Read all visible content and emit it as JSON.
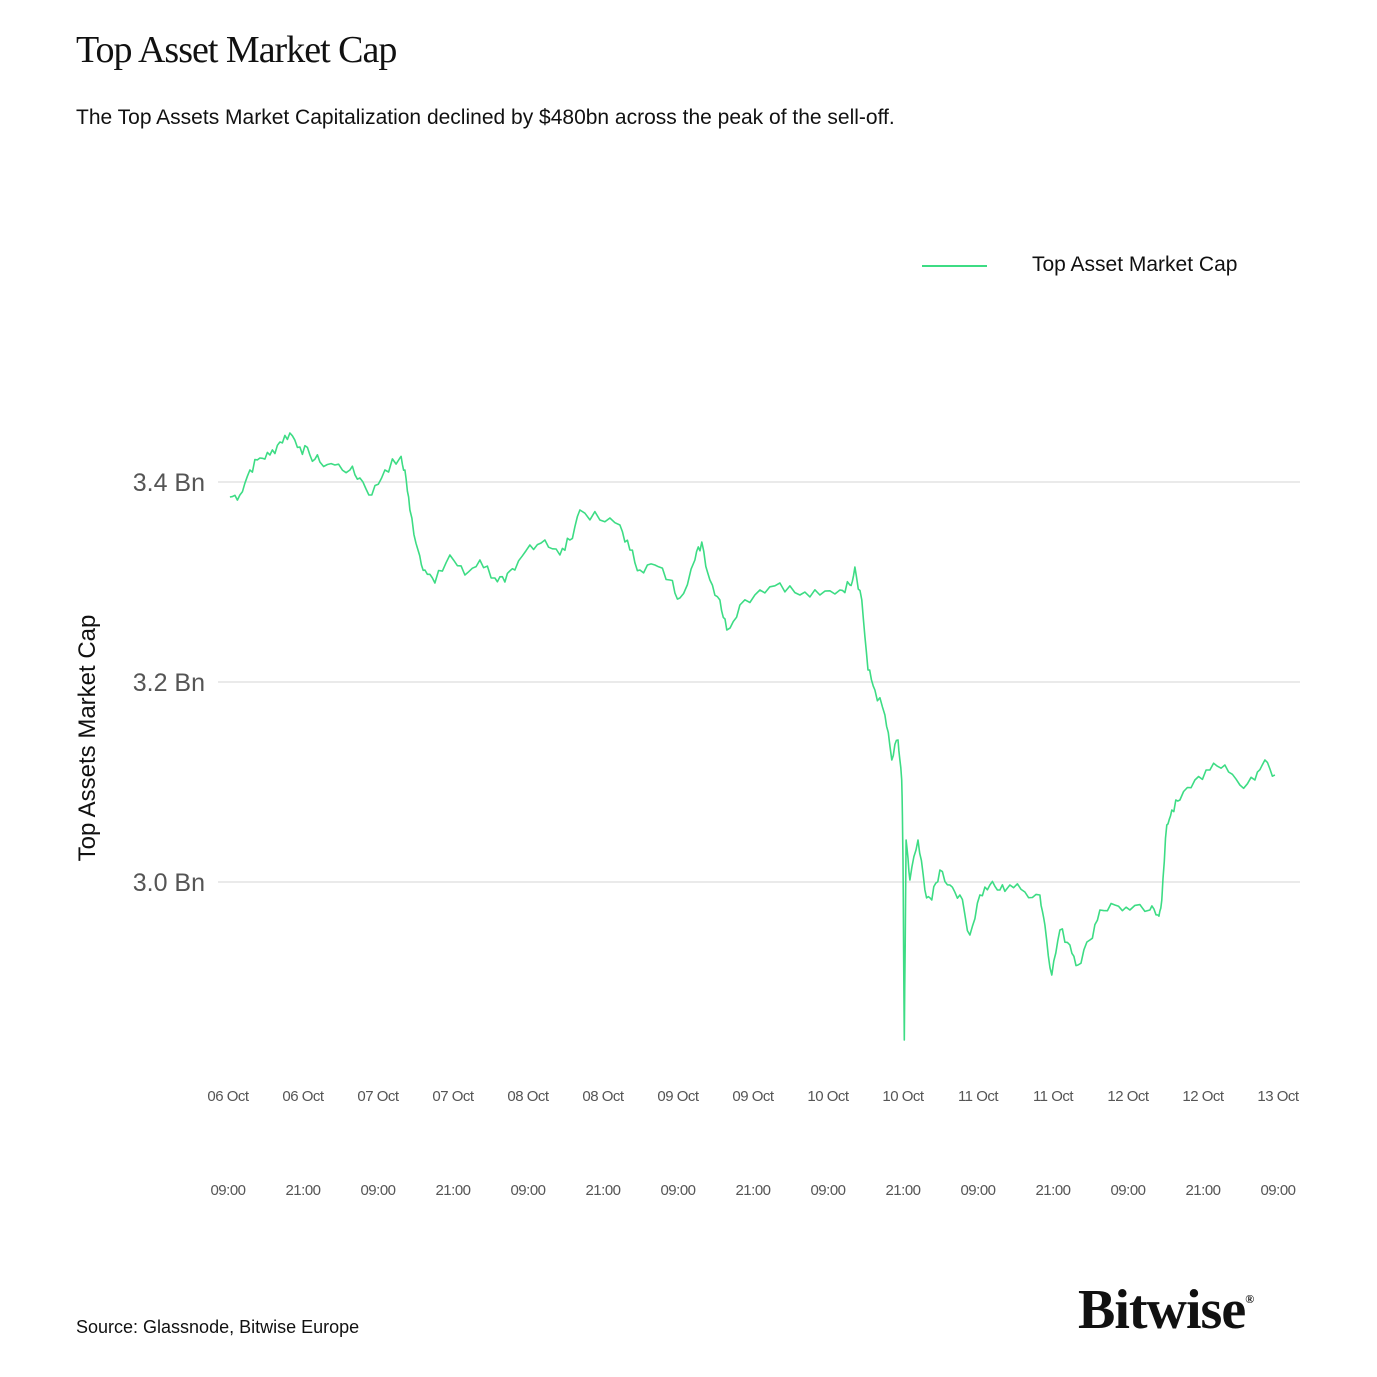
{
  "title": "Top Asset Market Cap",
  "subtitle": "The Top Assets Market Capitalization declined by $480bn across the peak of the sell-off.",
  "source": "Source: Glassnode, Bitwise Europe",
  "logo": "Bitwise",
  "line_color": "#3ddc84",
  "chart_data": {
    "type": "line",
    "title": "Top Asset Market Cap",
    "xlabel": "",
    "ylabel": "Top Assets Market Cap",
    "ylim": [
      2.8,
      3.5
    ],
    "xlim_hours": [
      0,
      168
    ],
    "grid": true,
    "legend_position": "top-right",
    "yticks": [
      {
        "value": 3.0,
        "label": "3.0 Bn"
      },
      {
        "value": 3.2,
        "label": "3.2 Bn"
      },
      {
        "value": 3.4,
        "label": "3.4 Bn"
      }
    ],
    "xticks": [
      {
        "hours": 0,
        "date": "06 Oct",
        "time": "09:00"
      },
      {
        "hours": 12,
        "date": "06 Oct",
        "time": "21:00"
      },
      {
        "hours": 24,
        "date": "07 Oct",
        "time": "09:00"
      },
      {
        "hours": 36,
        "date": "07 Oct",
        "time": "21:00"
      },
      {
        "hours": 48,
        "date": "08 Oct",
        "time": "09:00"
      },
      {
        "hours": 60,
        "date": "08 Oct",
        "time": "21:00"
      },
      {
        "hours": 72,
        "date": "09 Oct",
        "time": "09:00"
      },
      {
        "hours": 84,
        "date": "09 Oct",
        "time": "21:00"
      },
      {
        "hours": 96,
        "date": "10 Oct",
        "time": "09:00"
      },
      {
        "hours": 108,
        "date": "10 Oct",
        "time": "21:00"
      },
      {
        "hours": 120,
        "date": "11 Oct",
        "time": "09:00"
      },
      {
        "hours": 132,
        "date": "11 Oct",
        "time": "21:00"
      },
      {
        "hours": 144,
        "date": "12 Oct",
        "time": "09:00"
      },
      {
        "hours": 156,
        "date": "12 Oct",
        "time": "21:00"
      },
      {
        "hours": 168,
        "date": "13 Oct",
        "time": "09:00"
      }
    ],
    "series": [
      {
        "name": "Top Asset Market Cap",
        "x_unit": "hours since 06 Oct 09:00",
        "points": [
          [
            0.3,
            3.385
          ],
          [
            1.9,
            3.387
          ],
          [
            3.5,
            3.412
          ],
          [
            5.1,
            3.424
          ],
          [
            6.7,
            3.427
          ],
          [
            8.3,
            3.44
          ],
          [
            9.9,
            3.449
          ],
          [
            11.5,
            3.435
          ],
          [
            13.1,
            3.427
          ],
          [
            14.7,
            3.42
          ],
          [
            17.1,
            3.417
          ],
          [
            19.5,
            3.412
          ],
          [
            21.1,
            3.404
          ],
          [
            23.0,
            3.387
          ],
          [
            25.1,
            3.412
          ],
          [
            27.5,
            3.424
          ],
          [
            28.3,
            3.412
          ],
          [
            29.1,
            3.372
          ],
          [
            30.4,
            3.332
          ],
          [
            31.5,
            3.312
          ],
          [
            33.1,
            3.299
          ],
          [
            35.5,
            3.327
          ],
          [
            37.9,
            3.307
          ],
          [
            40.3,
            3.322
          ],
          [
            42.7,
            3.304
          ],
          [
            44.3,
            3.3
          ],
          [
            45.9,
            3.312
          ],
          [
            48.3,
            3.337
          ],
          [
            50.7,
            3.342
          ],
          [
            53.1,
            3.327
          ],
          [
            54.7,
            3.342
          ],
          [
            56.3,
            3.372
          ],
          [
            59.5,
            3.362
          ],
          [
            62.7,
            3.357
          ],
          [
            64.3,
            3.332
          ],
          [
            65.9,
            3.312
          ],
          [
            68.3,
            3.317
          ],
          [
            70.7,
            3.302
          ],
          [
            72.3,
            3.284
          ],
          [
            74.7,
            3.322
          ],
          [
            75.8,
            3.34
          ],
          [
            77.1,
            3.302
          ],
          [
            78.7,
            3.282
          ],
          [
            79.8,
            3.252
          ],
          [
            81.9,
            3.277
          ],
          [
            85.1,
            3.292
          ],
          [
            88.3,
            3.299
          ],
          [
            91.5,
            3.287
          ],
          [
            94.7,
            3.287
          ],
          [
            97.9,
            3.292
          ],
          [
            99.5,
            3.297
          ],
          [
            100.3,
            3.315
          ],
          [
            101.4,
            3.282
          ],
          [
            102.4,
            3.212
          ],
          [
            103.5,
            3.192
          ],
          [
            105.1,
            3.167
          ],
          [
            106.2,
            3.122
          ],
          [
            107.2,
            3.142
          ],
          [
            107.8,
            3.102
          ],
          [
            108.0,
            3.022
          ],
          [
            108.2,
            2.842
          ],
          [
            108.5,
            3.042
          ],
          [
            109.1,
            3.002
          ],
          [
            110.4,
            3.042
          ],
          [
            111.5,
            2.992
          ],
          [
            112.6,
            2.982
          ],
          [
            113.9,
            3.012
          ],
          [
            115.5,
            2.997
          ],
          [
            117.1,
            2.987
          ],
          [
            118.7,
            2.947
          ],
          [
            120.3,
            2.987
          ],
          [
            121.9,
            2.997
          ],
          [
            123.5,
            2.992
          ],
          [
            125.1,
            2.997
          ],
          [
            127.5,
            2.99
          ],
          [
            129.9,
            2.987
          ],
          [
            130.7,
            2.957
          ],
          [
            131.8,
            2.907
          ],
          [
            133.1,
            2.952
          ],
          [
            134.7,
            2.937
          ],
          [
            136.0,
            2.917
          ],
          [
            137.9,
            2.942
          ],
          [
            139.5,
            2.972
          ],
          [
            141.9,
            2.977
          ],
          [
            144.3,
            2.972
          ],
          [
            147.5,
            2.972
          ],
          [
            148.8,
            2.967
          ],
          [
            149.4,
            2.982
          ],
          [
            150.2,
            3.057
          ],
          [
            151.0,
            3.072
          ],
          [
            152.3,
            3.082
          ],
          [
            154.7,
            3.102
          ],
          [
            157.1,
            3.112
          ],
          [
            159.5,
            3.117
          ],
          [
            161.9,
            3.097
          ],
          [
            164.3,
            3.102
          ],
          [
            165.9,
            3.122
          ],
          [
            167.5,
            3.107
          ]
        ]
      }
    ]
  }
}
